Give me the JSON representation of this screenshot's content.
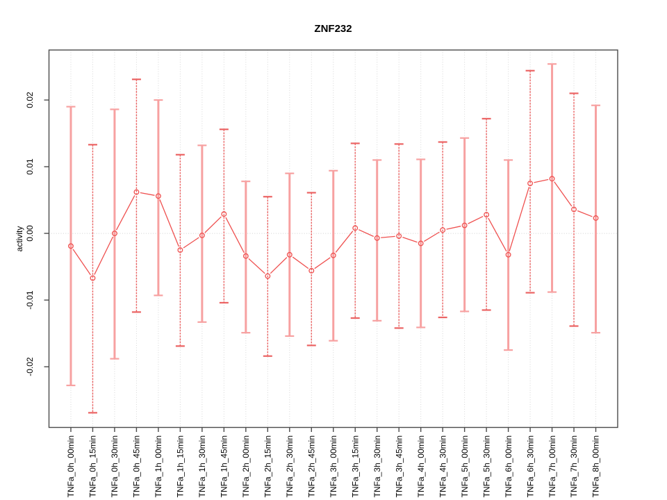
{
  "page": {
    "background": "#ffffff"
  },
  "chart_data": {
    "type": "line",
    "title": "ZNF232",
    "ylabel": "activity",
    "xlabel": "",
    "legend": "none",
    "grid": "vertical dotted gridline at each category; horizontal dotted line at y=0",
    "categories": [
      "TNFa_0h_00min",
      "TNFa_0h_15min",
      "TNFa_0h_30min",
      "TNFa_0h_45min",
      "TNFa_1h_00min",
      "TNFa_1h_15min",
      "TNFa_1h_30min",
      "TNFa_1h_45min",
      "TNFa_2h_00min",
      "TNFa_2h_15min",
      "TNFa_2h_30min",
      "TNFa_2h_45min",
      "TNFa_3h_00min",
      "TNFa_3h_15min",
      "TNFa_3h_30min",
      "TNFa_3h_45min",
      "TNFa_4h_00min",
      "TNFa_4h_30min",
      "TNFa_5h_00min",
      "TNFa_5h_30min",
      "TNFa_6h_00min",
      "TNFa_6h_30min",
      "TNFa_7h_00min",
      "TNFa_7h_30min",
      "TNFa_8h_00min"
    ],
    "series": [
      {
        "name": "mean",
        "values": [
          -0.0019,
          -0.0067,
          0.0,
          0.0062,
          0.0056,
          -0.0025,
          -0.0003,
          0.0029,
          -0.0034,
          -0.0064,
          -0.0032,
          -0.0056,
          -0.0033,
          0.0008,
          -0.0007,
          -0.0004,
          -0.0015,
          0.0005,
          0.0012,
          0.0028,
          -0.0032,
          0.0075,
          0.0082,
          0.0036,
          0.0023
        ]
      },
      {
        "name": "upper_error",
        "values": [
          0.019,
          0.0133,
          0.0186,
          0.0231,
          0.02,
          0.0118,
          0.0132,
          0.0156,
          0.0078,
          0.0055,
          0.009,
          0.0061,
          0.0094,
          0.0135,
          0.011,
          0.0134,
          0.0111,
          0.0137,
          0.0143,
          0.0172,
          0.011,
          0.0244,
          0.0254,
          0.021,
          0.0192
        ]
      },
      {
        "name": "lower_error",
        "values": [
          -0.0228,
          -0.0269,
          -0.0188,
          -0.0118,
          -0.0093,
          -0.0169,
          -0.0133,
          -0.0104,
          -0.0149,
          -0.0184,
          -0.0154,
          -0.0168,
          -0.0161,
          -0.0127,
          -0.0131,
          -0.0142,
          -0.0141,
          -0.0126,
          -0.0117,
          -0.0115,
          -0.0175,
          -0.0089,
          -0.0088,
          -0.0139,
          -0.0149
        ]
      }
    ],
    "y_ticks": [
      -0.02,
      -0.01,
      0,
      0.01,
      0.02
    ],
    "ylim": [
      -0.0291,
      0.0275
    ],
    "colors": {
      "point_and_line": "#ef504f",
      "errorbar_light": "#f7a1a1",
      "errorbar_dark": "#eb6363",
      "grid": "#d6d6d6",
      "zero_line": "#d0d0d0",
      "axis": "#4a4a4a",
      "text": "#000000"
    }
  }
}
